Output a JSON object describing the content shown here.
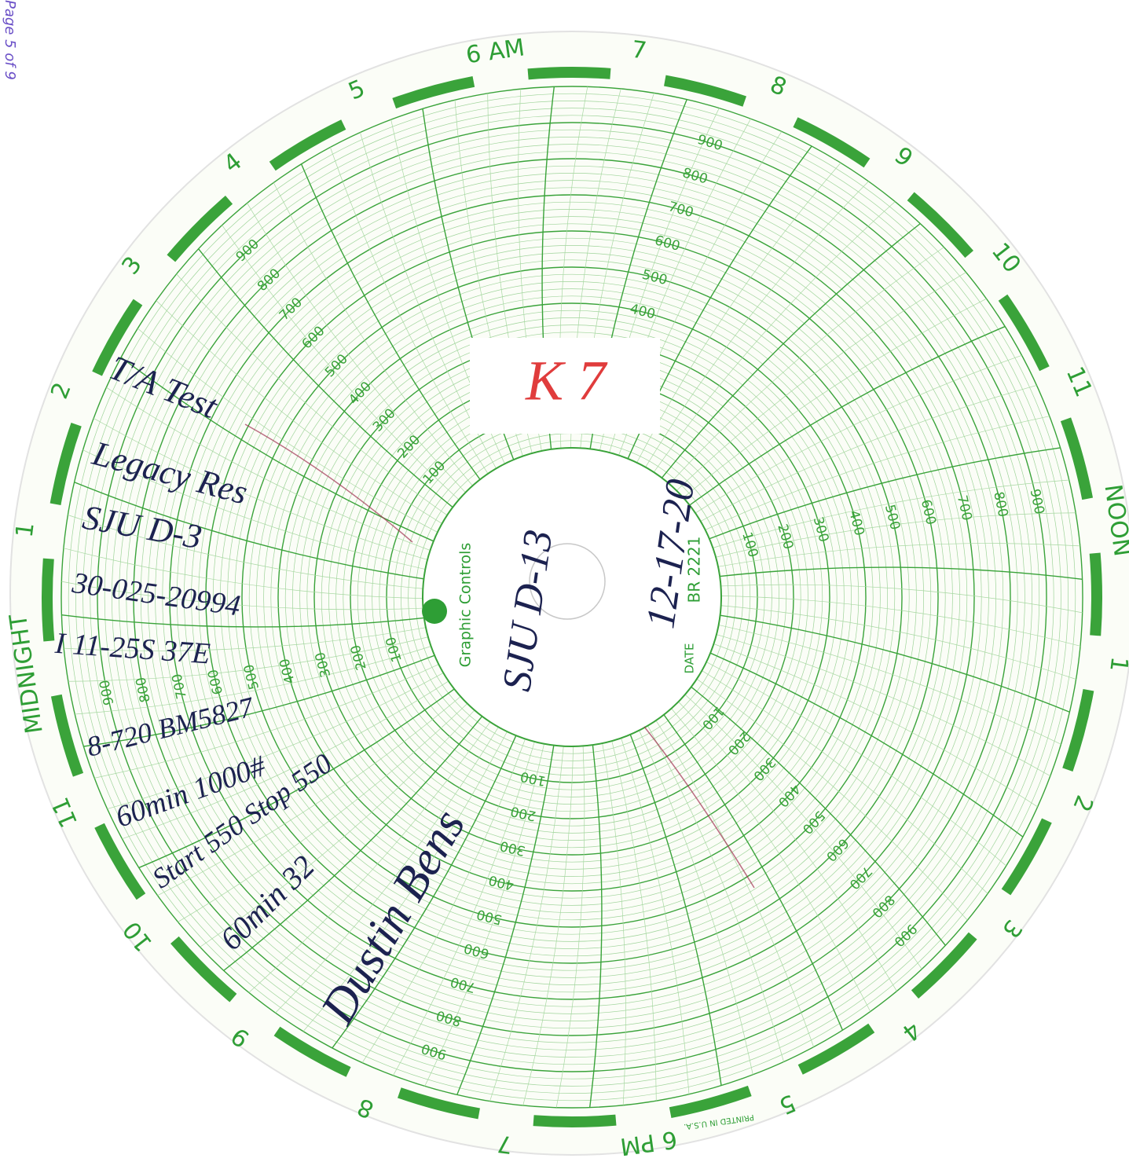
{
  "page_label": "Page 5 of 9",
  "hours": [
    "6 AM",
    "7",
    "8",
    "9",
    "10",
    "11",
    "NOON",
    "1",
    "2",
    "3",
    "4",
    "5",
    "6 PM",
    "7",
    "8",
    "9",
    "10",
    "11",
    "MIDNIGHT",
    "1",
    "2",
    "3",
    "4",
    "5"
  ],
  "scale_labels": [
    100,
    200,
    300,
    400,
    500,
    600,
    700,
    800,
    900
  ],
  "center": {
    "brand": "Graphic Controls",
    "date_label": "DATE",
    "chart_number": "BR 2221",
    "printed": "PRINTED IN U.S.A."
  },
  "handwriting": {
    "stamp": "K 7",
    "notes": [
      "T/A Test",
      "Legacy Res",
      "SJU D-3",
      "30-025-20994",
      "I 11-25S 37E",
      "8-720 BM5827",
      "60min 1000#",
      "Start 550 Stop 550",
      "60min 32"
    ],
    "signature": "Dustin Bens",
    "center_well": "SJU D-13",
    "center_date": "12-17-20"
  }
}
